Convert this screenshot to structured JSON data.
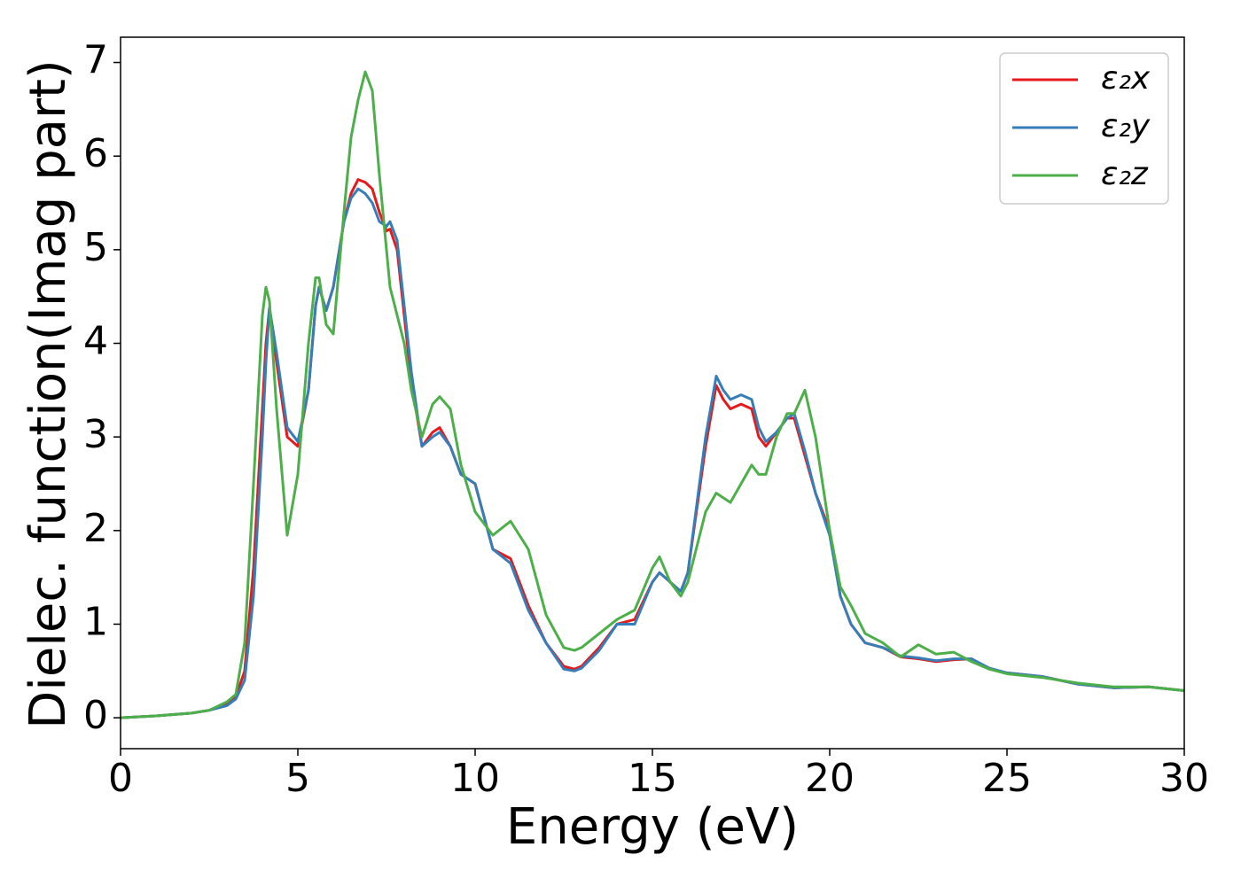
{
  "chart_data": {
    "type": "line",
    "xlabel": "Energy (eV)",
    "ylabel": "Dielec. function(Imag part)",
    "xlim": [
      0,
      30
    ],
    "ylim": [
      -0.33,
      7.27
    ],
    "xticks": [
      0,
      5,
      10,
      15,
      20,
      25,
      30
    ],
    "yticks": [
      0,
      1,
      2,
      3,
      4,
      5,
      6,
      7
    ],
    "legend": "upper right",
    "grid": false,
    "x": [
      0,
      1,
      2,
      2.5,
      3,
      3.25,
      3.5,
      3.75,
      4,
      4.1,
      4.2,
      4.4,
      4.7,
      5,
      5.3,
      5.5,
      5.6,
      5.8,
      6,
      6.3,
      6.5,
      6.7,
      6.9,
      7.1,
      7.3,
      7.5,
      7.6,
      7.8,
      8,
      8.2,
      8.5,
      8.8,
      9,
      9.3,
      9.6,
      10,
      10.5,
      11,
      11.5,
      12,
      12.5,
      12.8,
      13,
      13.5,
      14,
      14.5,
      15,
      15.2,
      15.5,
      15.8,
      16,
      16.5,
      16.8,
      17,
      17.2,
      17.5,
      17.8,
      18,
      18.2,
      18.5,
      18.8,
      19,
      19.3,
      19.6,
      20,
      20.3,
      20.6,
      21,
      21.5,
      22,
      22.5,
      23,
      23.5,
      24,
      24.5,
      25,
      26,
      27,
      28,
      29,
      30
    ],
    "series": [
      {
        "name": "ε₂x",
        "color": "#e41a1c",
        "values": [
          0,
          0.02,
          0.05,
          0.08,
          0.15,
          0.22,
          0.5,
          1.6,
          3.3,
          4.0,
          4.38,
          3.8,
          3.0,
          2.9,
          3.5,
          4.4,
          4.6,
          4.35,
          4.6,
          5.3,
          5.6,
          5.75,
          5.72,
          5.65,
          5.4,
          5.2,
          5.22,
          5.0,
          4.3,
          3.6,
          2.9,
          3.05,
          3.1,
          2.9,
          2.6,
          2.5,
          1.8,
          1.7,
          1.2,
          0.8,
          0.55,
          0.52,
          0.55,
          0.75,
          1.0,
          1.05,
          1.45,
          1.55,
          1.45,
          1.35,
          1.55,
          2.9,
          3.55,
          3.4,
          3.3,
          3.35,
          3.3,
          3.0,
          2.9,
          3.05,
          3.2,
          3.2,
          2.8,
          2.4,
          2.0,
          1.3,
          1.0,
          0.8,
          0.75,
          0.65,
          0.63,
          0.6,
          0.62,
          0.63,
          0.52,
          0.48,
          0.44,
          0.36,
          0.32,
          0.33,
          0.29
        ]
      },
      {
        "name": "ε₂y",
        "color": "#377eb8",
        "values": [
          0,
          0.02,
          0.05,
          0.08,
          0.13,
          0.2,
          0.4,
          1.3,
          3.0,
          3.8,
          4.38,
          3.9,
          3.1,
          2.95,
          3.5,
          4.4,
          4.6,
          4.35,
          4.6,
          5.3,
          5.55,
          5.65,
          5.6,
          5.5,
          5.3,
          5.25,
          5.3,
          5.1,
          4.4,
          3.7,
          2.9,
          3.0,
          3.05,
          2.9,
          2.6,
          2.5,
          1.8,
          1.65,
          1.15,
          0.8,
          0.52,
          0.5,
          0.53,
          0.72,
          1.0,
          1.0,
          1.45,
          1.55,
          1.45,
          1.35,
          1.55,
          3.0,
          3.65,
          3.5,
          3.4,
          3.45,
          3.4,
          3.1,
          2.95,
          3.05,
          3.2,
          3.25,
          2.85,
          2.4,
          1.95,
          1.3,
          1.0,
          0.8,
          0.75,
          0.66,
          0.64,
          0.61,
          0.63,
          0.63,
          0.53,
          0.48,
          0.44,
          0.36,
          0.32,
          0.33,
          0.29
        ]
      },
      {
        "name": "ε₂z",
        "color": "#4daf4a",
        "values": [
          0,
          0.02,
          0.05,
          0.08,
          0.17,
          0.25,
          0.8,
          2.5,
          4.3,
          4.6,
          4.45,
          3.3,
          1.95,
          2.6,
          4.0,
          4.7,
          4.7,
          4.2,
          4.1,
          5.4,
          6.2,
          6.6,
          6.9,
          6.7,
          5.8,
          5.0,
          4.6,
          4.3,
          4.0,
          3.5,
          3.0,
          3.35,
          3.43,
          3.3,
          2.7,
          2.2,
          1.95,
          2.1,
          1.8,
          1.1,
          0.75,
          0.72,
          0.75,
          0.9,
          1.05,
          1.15,
          1.6,
          1.72,
          1.45,
          1.3,
          1.45,
          2.2,
          2.4,
          2.35,
          2.3,
          2.5,
          2.7,
          2.6,
          2.6,
          3.0,
          3.25,
          3.25,
          3.5,
          3.0,
          2.0,
          1.4,
          1.2,
          0.9,
          0.8,
          0.65,
          0.78,
          0.68,
          0.7,
          0.6,
          0.52,
          0.47,
          0.43,
          0.37,
          0.33,
          0.33,
          0.29
        ]
      }
    ]
  }
}
